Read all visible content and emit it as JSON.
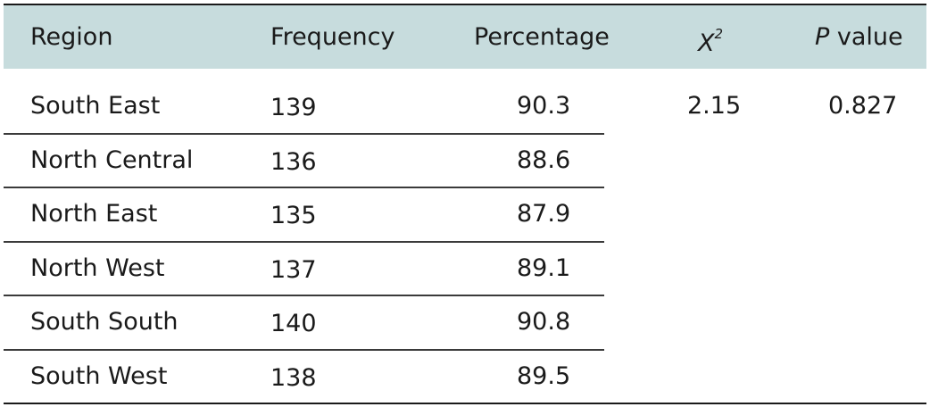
{
  "headers": {
    "region": "Region",
    "frequency": "Frequency",
    "percentage": "Percentage",
    "chi_symbol": "X",
    "chi_exp": "2",
    "p_symbol": "P",
    "p_suffix": " value"
  },
  "rows": [
    {
      "region": "South East",
      "frequency": "139",
      "percentage": "90.3"
    },
    {
      "region": "North Central",
      "frequency": "136",
      "percentage": "88.6"
    },
    {
      "region": "North East",
      "frequency": "135",
      "percentage": "87.9"
    },
    {
      "region": "North West",
      "frequency": "137",
      "percentage": "89.1"
    },
    {
      "region": "South South",
      "frequency": "140",
      "percentage": "90.8"
    },
    {
      "region": "South West",
      "frequency": "138",
      "percentage": "89.5"
    }
  ],
  "stats": {
    "chi_square": "2.15",
    "p_value": "0.827"
  },
  "colors": {
    "header_bg": "#c7dcdd",
    "rule": "#1a1a1a"
  }
}
